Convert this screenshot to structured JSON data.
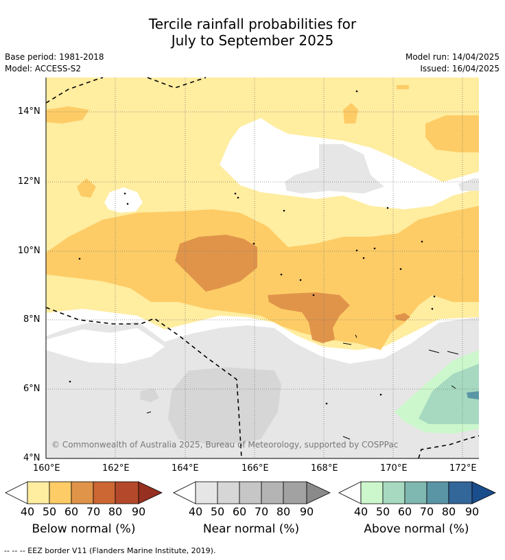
{
  "title": {
    "line1": "Tercile rainfall probabilities for",
    "line2": "July to September 2025"
  },
  "meta": {
    "base_period": "Base period: 1981-2018",
    "model": "Model: ACCESS-S2",
    "model_run": "Model run: 14/04/2025",
    "issued": "Issued: 16/04/2025"
  },
  "map": {
    "copyright": "© Commonwealth of Australia 2025, Bureau of Meteorology, supported by COSPPac",
    "lat_labels": [
      "14°N",
      "12°N",
      "10°N",
      "8°N",
      "6°N",
      "4°N"
    ],
    "lon_labels": [
      "160°E",
      "162°E",
      "164°E",
      "166°E",
      "168°E",
      "170°E",
      "172°E"
    ]
  },
  "legends": [
    {
      "title": "Below normal (%)",
      "ticks": [
        "40",
        "50",
        "60",
        "70",
        "80",
        "90"
      ],
      "colors": [
        "#ffeda0",
        "#fdcc66",
        "#e0944a",
        "#cc6633",
        "#b3492a",
        "#963020"
      ]
    },
    {
      "title": "Near normal (%)",
      "ticks": [
        "40",
        "50",
        "60",
        "70",
        "80",
        "90"
      ],
      "colors": [
        "#e6e6e6",
        "#d6d6d6",
        "#c6c6c6",
        "#b4b4b4",
        "#a2a2a2",
        "#8a8a8a"
      ]
    },
    {
      "title": "Above normal (%)",
      "ticks": [
        "40",
        "50",
        "60",
        "70",
        "80",
        "90"
      ],
      "colors": [
        "#ccf7cc",
        "#a6d9c0",
        "#7fb8b0",
        "#5a95a6",
        "#336699",
        "#1a4d8c"
      ]
    }
  ],
  "footnote": "--  --  -- EEZ border V11 (Flanders Marine Institute, 2019)."
}
